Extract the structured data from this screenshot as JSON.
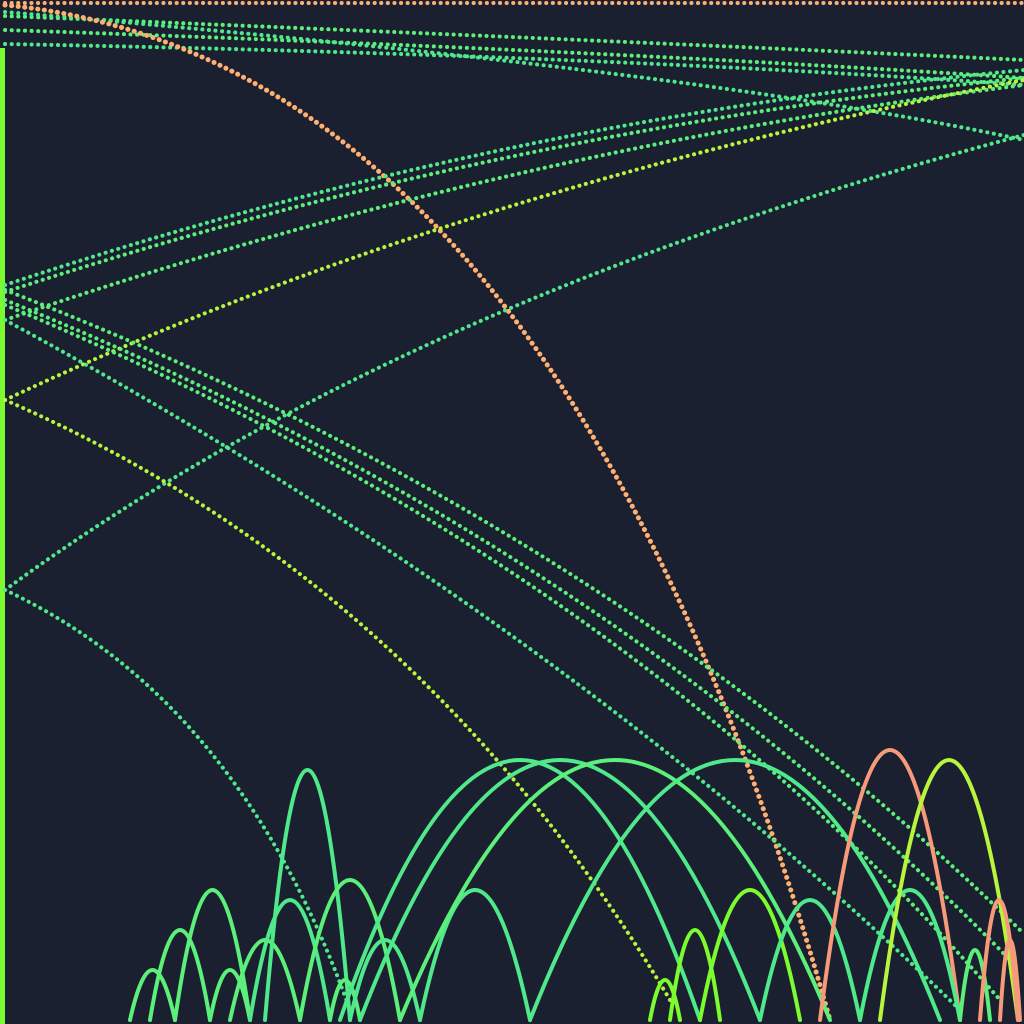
{
  "scene": {
    "background": "#1b2030",
    "palette": {
      "green": "#5cf07a",
      "teal_green": "#4fe88a",
      "lime": "#b8f53c",
      "bright_lime": "#7cfc2e",
      "peach": "#ffb070",
      "salmon": "#f79a7a"
    }
  }
}
